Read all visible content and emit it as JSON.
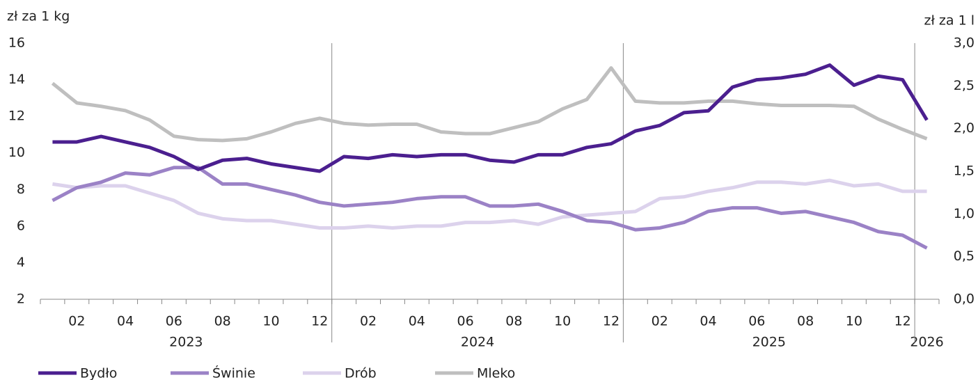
{
  "chart_data": {
    "type": "line",
    "y_label": "zł za 1 kg",
    "y2_label": "zł za 1 l",
    "categories": [
      null,
      "02",
      null,
      "04",
      null,
      "06",
      null,
      "08",
      null,
      "10",
      null,
      "12",
      null,
      "02",
      null,
      "04",
      null,
      "06",
      null,
      "08",
      null,
      "10",
      null,
      "12",
      null,
      "02",
      null,
      "04",
      null,
      "06",
      null,
      "08",
      null,
      "10",
      null,
      "12",
      null
    ],
    "years": [
      "2023",
      "2024",
      "2025",
      "2026"
    ],
    "ylim": [
      2,
      16
    ],
    "yticks": [
      2,
      4,
      6,
      8,
      10,
      12,
      14,
      16
    ],
    "y2lim": [
      0,
      3
    ],
    "y2ticks": [
      {
        "value": 0,
        "label": "0,0"
      },
      {
        "value": 0.5,
        "label": "0,5"
      },
      {
        "value": 1,
        "label": "1,0"
      },
      {
        "value": 1.5,
        "label": "1,5"
      },
      {
        "value": 2,
        "label": "2,0"
      },
      {
        "value": 2.5,
        "label": "2,5"
      },
      {
        "value": 3,
        "label": "3,0"
      }
    ],
    "legend": "bottom",
    "series": [
      {
        "name": "Bydło",
        "color": "#4b1f8f",
        "values": [
          10.6,
          10.6,
          10.9,
          10.6,
          10.3,
          9.8,
          9.1,
          9.6,
          9.7,
          9.4,
          9.2,
          9.0,
          9.8,
          9.7,
          9.9,
          9.8,
          9.9,
          9.9,
          9.6,
          9.5,
          9.9,
          9.9,
          10.3,
          10.5,
          11.2,
          11.5,
          12.2,
          12.3,
          13.6,
          14.0,
          14.1,
          14.3,
          14.8,
          13.7,
          14.2,
          14.0,
          11.8
        ]
      },
      {
        "name": "Świnie",
        "color": "#9b82c6",
        "values": [
          7.4,
          8.1,
          8.4,
          8.9,
          8.8,
          9.2,
          9.2,
          8.3,
          8.3,
          8.0,
          7.7,
          7.3,
          7.1,
          7.2,
          7.3,
          7.5,
          7.6,
          7.6,
          7.1,
          7.1,
          7.2,
          6.8,
          6.3,
          6.2,
          5.8,
          5.9,
          6.2,
          6.8,
          7.0,
          7.0,
          6.7,
          6.8,
          6.5,
          6.2,
          5.7,
          5.5,
          4.8
        ]
      },
      {
        "name": "Drób",
        "color": "#dcd2ec",
        "values": [
          8.3,
          8.1,
          8.2,
          8.2,
          7.8,
          7.4,
          6.7,
          6.4,
          6.3,
          6.3,
          6.1,
          5.9,
          5.9,
          6.0,
          5.9,
          6.0,
          6.0,
          6.2,
          6.2,
          6.3,
          6.1,
          6.5,
          6.6,
          6.7,
          6.8,
          7.5,
          7.6,
          7.9,
          8.1,
          8.4,
          8.4,
          8.3,
          8.5,
          8.2,
          8.3,
          7.9,
          7.9
        ]
      },
      {
        "name": "Mleko",
        "color": "#bfbfbf",
        "axis": "y2",
        "values": [
          2.53,
          2.3,
          2.26,
          2.21,
          2.1,
          1.91,
          1.87,
          1.86,
          1.88,
          1.96,
          2.06,
          2.12,
          2.06,
          2.04,
          2.05,
          2.05,
          1.96,
          1.94,
          1.94,
          2.01,
          2.08,
          2.23,
          2.34,
          2.71,
          2.32,
          2.3,
          2.3,
          2.32,
          2.32,
          2.29,
          2.27,
          2.27,
          2.27,
          2.26,
          2.11,
          1.99,
          1.88
        ]
      }
    ]
  }
}
